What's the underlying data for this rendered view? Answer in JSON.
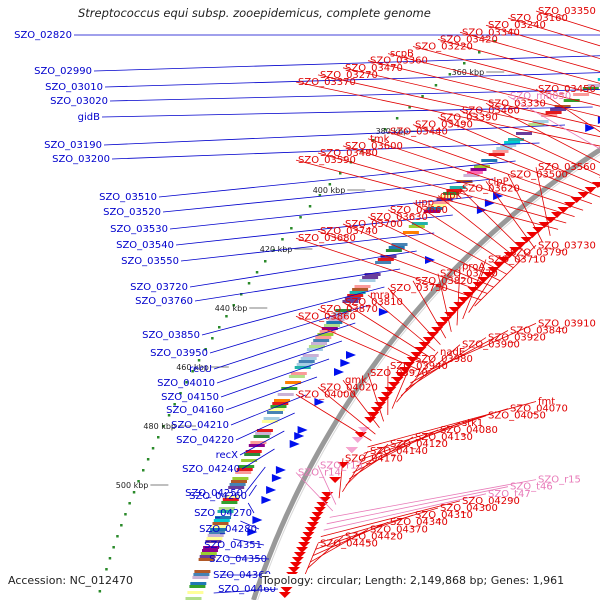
{
  "title": "Streptococcus equi subsp. zooepidemicus, complete genome",
  "footer": {
    "accession": "Accession: NC_012470",
    "stats": "Topology: circular; Length: 2,149,868 bp; Genes: 1,961"
  },
  "colors": {
    "left_labels": "#0000cc",
    "right_labels": "#e00000",
    "rna_labels": "#e87ab8",
    "backbone": "#999999"
  },
  "kbp_marks": [
    "360 kbp",
    "380 kbp",
    "400 kbp",
    "420 kbp",
    "440 kbp",
    "460 kbp",
    "480 kbp",
    "500 kbp"
  ],
  "left_labels": [
    "SZO_02820",
    "SZO_02990",
    "SZO_03010",
    "SZO_03020",
    "gidB",
    "SZO_03190",
    "SZO_03200",
    "SZO_03510",
    "SZO_03520",
    "SZO_03530",
    "SZO_03540",
    "SZO_03550",
    "SZO_03720",
    "SZO_03760",
    "SZO_03850",
    "SZO_03950",
    "recU",
    "SZO_04010",
    "SZO_04150",
    "SZO_04160",
    "SZO_04210",
    "SZO_04220",
    "recX",
    "SZO_04240",
    "SZO_04250",
    "SZO_04260",
    "SZO_04270",
    "SZO_04280",
    "SZO_04351",
    "SZO_04350",
    "SZO_04360",
    "SZO_04460"
  ],
  "right_labels": [
    "SZO_03350",
    "SZO_03160",
    "SZO_03240",
    "SZO_03340",
    "SZO_03420",
    "SZO_03220",
    "scpB",
    "SZO_03360",
    "SZO_03470",
    "SZO_03270",
    "SZO_03370",
    "SZO_03450",
    "SZO_m0050",
    "SZO_03330",
    "SZO_03460",
    "SZO_03390",
    "SZO_03490",
    "SZO_03440",
    "tmk",
    "SZO_03600",
    "SZO_03480",
    "SZO_03590",
    "SZO_03560",
    "SZO_03500",
    "clpP",
    "SZO_03620",
    "glpK",
    "upp",
    "SZO_03660",
    "SZO_03630",
    "SZO_03700",
    "SZO_03740",
    "SZO_03680",
    "SZO_03730",
    "SZO_03790",
    "SZO_03710",
    "proA",
    "SZO_03770",
    "SZO_03820",
    "SZO_03750",
    "mraY",
    "SZO_03810",
    "SZO_03870",
    "SZO_03860",
    "SZO_03910",
    "SZO_03840",
    "SZO_03920",
    "SZO_03900",
    "nadE",
    "SZO_03980",
    "SZO_03940",
    "SZO_03970",
    "gmk",
    "SZO_04020",
    "SZO_04000",
    "fmt",
    "SZO_04070",
    "SZO_04050",
    "stk1",
    "SZO_04080",
    "SZO_04130",
    "SZO_04120",
    "SZO_04140",
    "SZO_04170",
    "SZO_r13",
    "SZO_r14",
    "SZO_r15",
    "SZO_t46",
    "SZO_t47",
    "SZO_04290",
    "SZO_04300",
    "SZO_04310",
    "SZO_04340",
    "SZO_04370",
    "SZO_04420",
    "SZO_04450"
  ],
  "rna_label_names": [
    "SZO_m0050",
    "SZO_r13",
    "SZO_r14",
    "SZO_r15",
    "SZO_t46",
    "SZO_t47"
  ]
}
